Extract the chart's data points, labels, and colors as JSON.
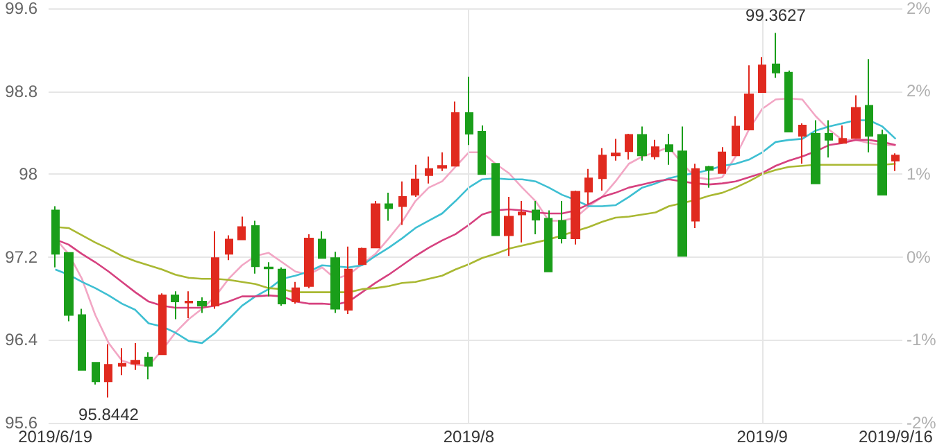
{
  "chart_data": {
    "type": "candlestick",
    "categories": [
      "2019/6/19",
      null,
      null,
      null,
      null,
      null,
      null,
      null,
      null,
      null,
      null,
      null,
      null,
      null,
      null,
      null,
      null,
      null,
      null,
      null,
      null,
      null,
      null,
      null,
      null,
      null,
      null,
      null,
      null,
      null,
      null,
      "2019/8",
      null,
      null,
      null,
      null,
      null,
      null,
      null,
      null,
      null,
      null,
      null,
      null,
      null,
      null,
      null,
      null,
      null,
      null,
      null,
      null,
      null,
      "2019/9",
      null,
      null,
      null,
      null,
      null,
      null,
      null,
      null,
      null,
      "2019/9/16"
    ],
    "ohlc": [
      [
        97.65,
        97.69,
        97.1,
        97.23
      ],
      [
        97.24,
        97.24,
        96.58,
        96.64
      ],
      [
        96.64,
        96.7,
        96.11,
        96.11
      ],
      [
        96.18,
        96.18,
        95.97,
        96.0
      ],
      [
        96.0,
        96.36,
        95.8442,
        96.16
      ],
      [
        96.15,
        96.32,
        96.06,
        96.17
      ],
      [
        96.17,
        96.37,
        96.11,
        96.2
      ],
      [
        96.23,
        96.28,
        96.02,
        96.15
      ],
      [
        96.26,
        96.85,
        96.26,
        96.83
      ],
      [
        96.83,
        96.87,
        96.6,
        96.77
      ],
      [
        96.76,
        96.87,
        96.61,
        96.77
      ],
      [
        96.77,
        96.81,
        96.66,
        96.73
      ],
      [
        96.73,
        97.45,
        96.7,
        97.19
      ],
      [
        97.23,
        97.41,
        97.17,
        97.37
      ],
      [
        97.37,
        97.59,
        97.37,
        97.49
      ],
      [
        97.5,
        97.55,
        97.04,
        97.11
      ],
      [
        97.1,
        97.15,
        96.82,
        97.09
      ],
      [
        97.08,
        97.1,
        96.73,
        96.75
      ],
      [
        96.77,
        96.96,
        96.75,
        96.9
      ],
      [
        96.92,
        97.42,
        96.9,
        97.38
      ],
      [
        97.37,
        97.45,
        97.19,
        97.19
      ],
      [
        97.19,
        97.25,
        96.66,
        96.7
      ],
      [
        96.69,
        97.3,
        96.65,
        97.08
      ],
      [
        97.13,
        97.29,
        97.13,
        97.28
      ],
      [
        97.29,
        97.74,
        97.29,
        97.71
      ],
      [
        97.71,
        97.82,
        97.55,
        97.67
      ],
      [
        97.69,
        97.93,
        97.51,
        97.78
      ],
      [
        97.8,
        98.09,
        97.78,
        97.95
      ],
      [
        97.99,
        98.17,
        97.91,
        98.05
      ],
      [
        98.06,
        98.21,
        98.03,
        98.08
      ],
      [
        98.08,
        98.7,
        98.08,
        98.59
      ],
      [
        98.59,
        98.94,
        98.28,
        98.39
      ],
      [
        98.41,
        98.47,
        98.0,
        98.0
      ],
      [
        98.1,
        98.1,
        97.41,
        97.41
      ],
      [
        97.41,
        97.78,
        97.21,
        97.59
      ],
      [
        97.61,
        97.74,
        97.34,
        97.63
      ],
      [
        97.65,
        97.74,
        97.42,
        97.56
      ],
      [
        97.57,
        97.65,
        97.06,
        97.06
      ],
      [
        97.55,
        97.74,
        97.33,
        97.38
      ],
      [
        97.38,
        97.84,
        97.32,
        97.83
      ],
      [
        97.83,
        98.05,
        97.71,
        97.96
      ],
      [
        97.96,
        98.25,
        97.84,
        98.18
      ],
      [
        98.18,
        98.34,
        98.13,
        98.2
      ],
      [
        98.22,
        98.39,
        98.14,
        98.38
      ],
      [
        98.38,
        98.46,
        98.13,
        98.18
      ],
      [
        98.17,
        98.33,
        98.14,
        98.26
      ],
      [
        98.28,
        98.39,
        98.09,
        98.22
      ],
      [
        98.22,
        98.46,
        97.21,
        97.21
      ],
      [
        97.55,
        98.1,
        97.48,
        98.05
      ],
      [
        98.07,
        98.08,
        97.87,
        98.04
      ],
      [
        98.01,
        98.26,
        98.01,
        98.21
      ],
      [
        98.18,
        98.56,
        98.18,
        98.46
      ],
      [
        98.43,
        99.05,
        98.43,
        98.77
      ],
      [
        98.79,
        99.13,
        98.79,
        99.05
      ],
      [
        99.06,
        99.3627,
        98.93,
        98.98
      ],
      [
        98.98,
        99.0,
        98.41,
        98.41
      ],
      [
        98.37,
        98.49,
        98.1,
        98.47
      ],
      [
        98.39,
        98.52,
        97.91,
        97.91
      ],
      [
        98.39,
        98.52,
        98.16,
        98.33
      ],
      [
        98.3,
        98.47,
        98.3,
        98.34
      ],
      [
        98.35,
        98.76,
        98.35,
        98.64
      ],
      [
        98.66,
        99.11,
        98.21,
        98.37
      ],
      [
        98.38,
        98.43,
        97.8,
        97.8
      ],
      [
        98.13,
        98.2,
        98.03,
        98.18
      ]
    ],
    "colors": [
      "#1a9e1a",
      "#1a9e1a",
      "#1a9e1a",
      "#1a9e1a",
      "#e02a1f",
      "#e02a1f",
      "#e02a1f",
      "#1a9e1a",
      "#e02a1f",
      "#1a9e1a",
      "#e02a1f",
      "#1a9e1a",
      "#e02a1f",
      "#e02a1f",
      "#e02a1f",
      "#1a9e1a",
      "#1a9e1a",
      "#1a9e1a",
      "#e02a1f",
      "#e02a1f",
      "#1a9e1a",
      "#1a9e1a",
      "#e02a1f",
      "#e02a1f",
      "#e02a1f",
      "#1a9e1a",
      "#e02a1f",
      "#e02a1f",
      "#e02a1f",
      "#e02a1f",
      "#e02a1f",
      "#1a9e1a",
      "#1a9e1a",
      "#1a9e1a",
      "#e02a1f",
      "#e02a1f",
      "#1a9e1a",
      "#1a9e1a",
      "#1a9e1a",
      "#e02a1f",
      "#e02a1f",
      "#e02a1f",
      "#e02a1f",
      "#e02a1f",
      "#1a9e1a",
      "#e02a1f",
      "#1a9e1a",
      "#1a9e1a",
      "#e02a1f",
      "#1a9e1a",
      "#e02a1f",
      "#e02a1f",
      "#e02a1f",
      "#e02a1f",
      "#1a9e1a",
      "#1a9e1a",
      "#e02a1f",
      "#1a9e1a",
      "#1a9e1a",
      "#e02a1f",
      "#e02a1f",
      "#1a9e1a",
      "#1a9e1a",
      "#e02a1f"
    ],
    "series": [
      {
        "type": "line",
        "color": "#f2a6c4",
        "values": [
          97.38,
          97.23,
          96.99,
          96.64,
          96.37,
          96.2,
          96.16,
          96.15,
          96.3,
          96.47,
          96.6,
          96.7,
          96.82,
          96.99,
          97.12,
          97.21,
          97.24,
          97.15,
          97.06,
          97.03,
          97.1,
          96.99,
          97.03,
          97.13,
          97.23,
          97.38,
          97.54,
          97.74,
          97.87,
          97.93,
          98.07,
          98.21,
          98.21,
          98.1,
          98.01,
          97.87,
          97.74,
          97.55,
          97.55,
          97.58,
          97.69,
          97.78,
          97.93,
          98.1,
          98.17,
          98.21,
          98.26,
          98.1,
          97.97,
          97.95,
          97.97,
          98.17,
          98.43,
          98.63,
          98.72,
          98.73,
          98.72,
          98.56,
          98.43,
          98.33,
          98.33,
          98.3,
          98.28,
          98.28
        ]
      },
      {
        "type": "line",
        "color": "#3ebfd2",
        "values": [
          97.08,
          97.03,
          96.96,
          96.9,
          96.83,
          96.75,
          96.69,
          96.56,
          96.53,
          96.47,
          96.39,
          96.37,
          96.47,
          96.6,
          96.73,
          96.82,
          96.89,
          96.99,
          97.02,
          97.06,
          97.12,
          97.11,
          97.1,
          97.12,
          97.21,
          97.29,
          97.38,
          97.48,
          97.55,
          97.62,
          97.74,
          97.87,
          97.95,
          97.96,
          97.95,
          97.95,
          97.93,
          97.87,
          97.8,
          97.75,
          97.69,
          97.69,
          97.7,
          97.78,
          97.87,
          97.91,
          97.96,
          97.99,
          98.01,
          98.04,
          98.08,
          98.1,
          98.14,
          98.21,
          98.31,
          98.33,
          98.34,
          98.42,
          98.46,
          98.49,
          98.52,
          98.52,
          98.46,
          98.34
        ]
      },
      {
        "type": "line",
        "color": "#d6417f",
        "values": [
          97.37,
          97.32,
          97.23,
          97.15,
          97.06,
          96.96,
          96.86,
          96.77,
          96.73,
          96.71,
          96.71,
          96.71,
          96.73,
          96.77,
          96.82,
          96.82,
          96.83,
          96.82,
          96.77,
          96.75,
          96.75,
          96.74,
          96.77,
          96.86,
          96.95,
          97.03,
          97.12,
          97.21,
          97.29,
          97.36,
          97.42,
          97.51,
          97.61,
          97.65,
          97.66,
          97.65,
          97.63,
          97.62,
          97.62,
          97.65,
          97.71,
          97.78,
          97.82,
          97.87,
          97.9,
          97.93,
          97.95,
          97.93,
          97.91,
          97.9,
          97.91,
          97.93,
          97.97,
          98.01,
          98.08,
          98.13,
          98.17,
          98.22,
          98.28,
          98.3,
          98.33,
          98.33,
          98.31,
          98.28
        ]
      },
      {
        "type": "line",
        "color": "#a9b832",
        "values": [
          97.49,
          97.48,
          97.41,
          97.34,
          97.28,
          97.21,
          97.16,
          97.12,
          97.08,
          97.03,
          97.0,
          96.99,
          96.99,
          96.98,
          96.96,
          96.94,
          96.9,
          96.89,
          96.86,
          96.86,
          96.86,
          96.86,
          96.86,
          96.89,
          96.9,
          96.92,
          96.95,
          96.96,
          96.99,
          97.02,
          97.08,
          97.13,
          97.19,
          97.23,
          97.28,
          97.31,
          97.34,
          97.37,
          97.41,
          97.45,
          97.49,
          97.54,
          97.58,
          97.59,
          97.61,
          97.63,
          97.69,
          97.72,
          97.75,
          97.79,
          97.82,
          97.87,
          97.93,
          98.0,
          98.04,
          98.07,
          98.08,
          98.09,
          98.09,
          98.09,
          98.09,
          98.09,
          98.09,
          98.1
        ]
      }
    ],
    "marker": "none",
    "ylim": [
      95.6,
      99.6
    ],
    "yticks": [
      95.6,
      96.4,
      97.2,
      98,
      98.8,
      99.6
    ],
    "y2lim": [
      -1.65,
      2.47
    ],
    "y2ticks": [
      {
        "value": -1.65,
        "label": "-2%"
      },
      {
        "value": -0.82,
        "label": "-1%"
      },
      {
        "value": 0,
        "label": "0%"
      },
      {
        "value": 0.82,
        "label": "1%"
      },
      {
        "value": 1.65,
        "label": "2%"
      },
      {
        "value": 2.47,
        "label": "2%"
      }
    ],
    "grid": true,
    "annotations": [
      {
        "text": "95.8442",
        "y": 95.8442
      },
      {
        "text": "99.3627",
        "y": 99.3627
      }
    ]
  }
}
